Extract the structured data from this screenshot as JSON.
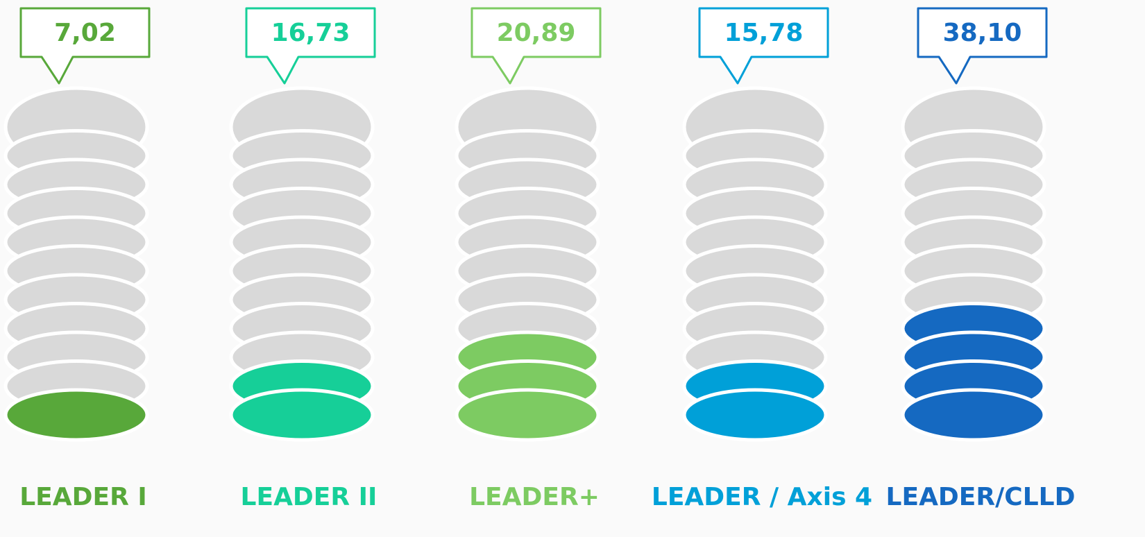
{
  "chart_data": {
    "type": "pictogram",
    "categories": [
      "LEADER I",
      "LEADER II",
      "LEADER+",
      "LEADER / Axis 4",
      "LEADER/CLLD"
    ],
    "values": [
      7.02,
      16.73,
      20.89,
      15.78,
      38.1
    ],
    "value_labels": [
      "7,02",
      "16,73",
      "20,89",
      "15,78",
      "38,10"
    ],
    "colors": [
      "#58a83a",
      "#16cf98",
      "#7dcb62",
      "#00a0d8",
      "#1569c1"
    ],
    "ylim": [
      0,
      110
    ]
  }
}
